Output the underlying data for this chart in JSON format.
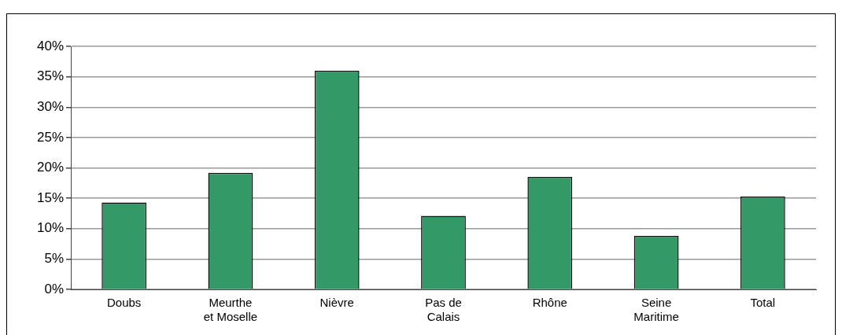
{
  "chart_data": {
    "type": "bar",
    "categories": [
      "Doubs",
      "Meurthe\net Moselle",
      "Nièvre",
      "Pas de\nCalais",
      "Rhône",
      "Seine\nMaritime",
      "Total"
    ],
    "values": [
      14.3,
      19.2,
      36.0,
      12.1,
      18.5,
      8.8,
      15.3
    ],
    "color": "#339966",
    "ylim": [
      0,
      40
    ],
    "yticks": [
      {
        "value": 0,
        "label": "0%"
      },
      {
        "value": 5,
        "label": "5%"
      },
      {
        "value": 10,
        "label": "10%"
      },
      {
        "value": 15,
        "label": "15%"
      },
      {
        "value": 20,
        "label": "20%"
      },
      {
        "value": 25,
        "label": "25%"
      },
      {
        "value": 30,
        "label": "30%"
      },
      {
        "value": 35,
        "label": "35%"
      },
      {
        "value": 40,
        "label": "40%"
      }
    ],
    "grid": "y",
    "legend": false
  }
}
